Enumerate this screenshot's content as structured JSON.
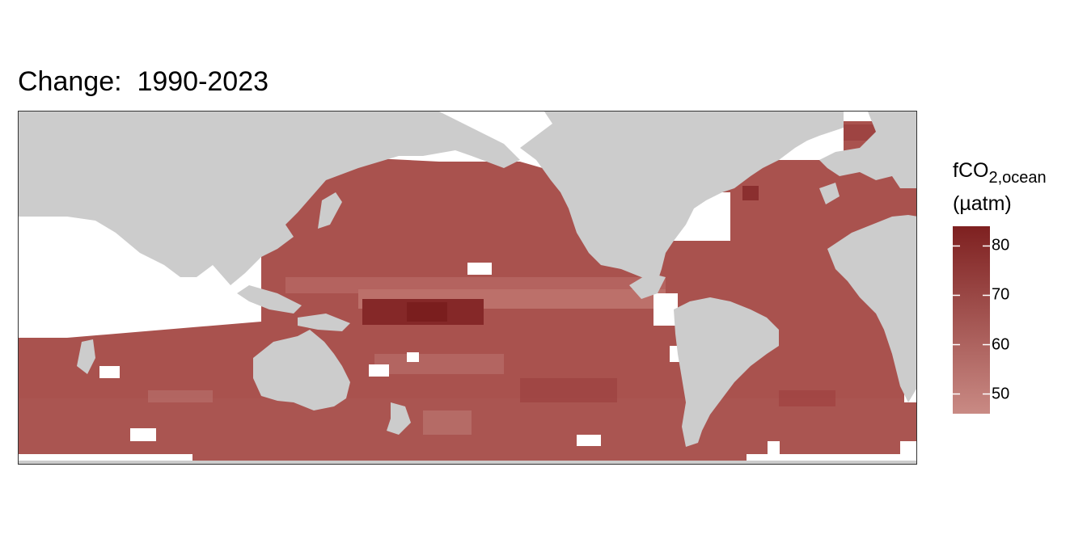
{
  "title": "Change:  1990-2023",
  "legend": {
    "title_main": "fCO",
    "title_sub": "2,ocean",
    "title_unit": "(µatm)",
    "ticks": [
      {
        "value": 80,
        "label": "80"
      },
      {
        "value": 70,
        "label": "70"
      },
      {
        "value": 60,
        "label": "60"
      },
      {
        "value": 50,
        "label": "50"
      }
    ],
    "range": [
      46,
      84
    ],
    "color_low": "#c98a84",
    "color_high": "#7e2020"
  },
  "map": {
    "projection": "equirectangular, Pacific-centred",
    "lon_range": [
      20,
      380
    ],
    "lat_range": [
      -78,
      65
    ],
    "land_color": "#cccccc",
    "ocean_color_scale": "light red to dark red",
    "land_masses": [
      "Eurasia",
      "Africa",
      "Australia",
      "North America",
      "South America",
      "Greenland",
      "Antarctica",
      "New Guinea",
      "New Zealand",
      "Japan",
      "Indonesia",
      "Madagascar",
      "United Kingdom"
    ]
  }
}
